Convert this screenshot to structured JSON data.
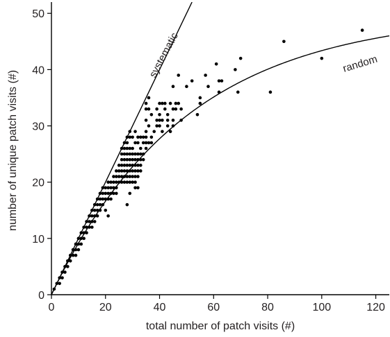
{
  "chart_data": {
    "type": "scatter",
    "xlabel": "total number of patch visits (#)",
    "ylabel": "number of unique patch visits (#)",
    "xlim": [
      0,
      125
    ],
    "ylim": [
      0,
      52
    ],
    "xticks": [
      0,
      20,
      40,
      60,
      80,
      100,
      120
    ],
    "yticks": [
      0,
      10,
      20,
      30,
      40,
      50
    ],
    "grid": false,
    "colors": {
      "points": "#000000",
      "lines": "#000000",
      "text": "#231f20"
    },
    "reference_curves": [
      {
        "name": "systematic",
        "kind": "identity"
      },
      {
        "name": "random",
        "kind": "saturating"
      }
    ],
    "points": [
      [
        1,
        1
      ],
      [
        2,
        2
      ],
      [
        3,
        3
      ],
      [
        3,
        2
      ],
      [
        4,
        4
      ],
      [
        4,
        3
      ],
      [
        5,
        5
      ],
      [
        5,
        4
      ],
      [
        6,
        6
      ],
      [
        6,
        5
      ],
      [
        7,
        7
      ],
      [
        7,
        6
      ],
      [
        8,
        8
      ],
      [
        8,
        7
      ],
      [
        9,
        9
      ],
      [
        9,
        8
      ],
      [
        9,
        7
      ],
      [
        10,
        10
      ],
      [
        10,
        9
      ],
      [
        10,
        8
      ],
      [
        11,
        11
      ],
      [
        11,
        10
      ],
      [
        11,
        9
      ],
      [
        12,
        12
      ],
      [
        12,
        11
      ],
      [
        12,
        10
      ],
      [
        13,
        13
      ],
      [
        13,
        12
      ],
      [
        13,
        11
      ],
      [
        14,
        14
      ],
      [
        14,
        13
      ],
      [
        14,
        12
      ],
      [
        15,
        15
      ],
      [
        15,
        14
      ],
      [
        15,
        13
      ],
      [
        15,
        12
      ],
      [
        16,
        16
      ],
      [
        16,
        15
      ],
      [
        16,
        14
      ],
      [
        16,
        13
      ],
      [
        17,
        17
      ],
      [
        17,
        16
      ],
      [
        17,
        15
      ],
      [
        17,
        14
      ],
      [
        18,
        18
      ],
      [
        18,
        17
      ],
      [
        18,
        16
      ],
      [
        18,
        15
      ],
      [
        19,
        19
      ],
      [
        19,
        18
      ],
      [
        19,
        17
      ],
      [
        19,
        16
      ],
      [
        20,
        19
      ],
      [
        20,
        18
      ],
      [
        20,
        17
      ],
      [
        20,
        15
      ],
      [
        21,
        20
      ],
      [
        21,
        19
      ],
      [
        21,
        18
      ],
      [
        21,
        17
      ],
      [
        21,
        14
      ],
      [
        22,
        20
      ],
      [
        22,
        19
      ],
      [
        22,
        18
      ],
      [
        22,
        17
      ],
      [
        23,
        21
      ],
      [
        23,
        20
      ],
      [
        23,
        19
      ],
      [
        23,
        18
      ],
      [
        24,
        22
      ],
      [
        24,
        21
      ],
      [
        24,
        20
      ],
      [
        24,
        19
      ],
      [
        24,
        18
      ],
      [
        25,
        23
      ],
      [
        25,
        22
      ],
      [
        25,
        21
      ],
      [
        25,
        20
      ],
      [
        26,
        26
      ],
      [
        26,
        25
      ],
      [
        26,
        24
      ],
      [
        26,
        23
      ],
      [
        26,
        22
      ],
      [
        26,
        21
      ],
      [
        26,
        20
      ],
      [
        27,
        27
      ],
      [
        27,
        26
      ],
      [
        27,
        25
      ],
      [
        27,
        24
      ],
      [
        27,
        23
      ],
      [
        27,
        22
      ],
      [
        27,
        21
      ],
      [
        27,
        20
      ],
      [
        28,
        28
      ],
      [
        28,
        27
      ],
      [
        28,
        26
      ],
      [
        28,
        25
      ],
      [
        28,
        24
      ],
      [
        28,
        23
      ],
      [
        28,
        22
      ],
      [
        28,
        21
      ],
      [
        28,
        20
      ],
      [
        28,
        16
      ],
      [
        29,
        29
      ],
      [
        29,
        28
      ],
      [
        29,
        26
      ],
      [
        29,
        25
      ],
      [
        29,
        24
      ],
      [
        29,
        23
      ],
      [
        29,
        22
      ],
      [
        29,
        21
      ],
      [
        29,
        20
      ],
      [
        29,
        18
      ],
      [
        30,
        28
      ],
      [
        30,
        26
      ],
      [
        30,
        25
      ],
      [
        30,
        24
      ],
      [
        30,
        23
      ],
      [
        30,
        22
      ],
      [
        30,
        21
      ],
      [
        30,
        20
      ],
      [
        31,
        29
      ],
      [
        31,
        27
      ],
      [
        31,
        25
      ],
      [
        31,
        24
      ],
      [
        31,
        23
      ],
      [
        31,
        22
      ],
      [
        31,
        21
      ],
      [
        31,
        20
      ],
      [
        31,
        19
      ],
      [
        32,
        28
      ],
      [
        32,
        27
      ],
      [
        32,
        25
      ],
      [
        32,
        24
      ],
      [
        32,
        23
      ],
      [
        32,
        22
      ],
      [
        32,
        21
      ],
      [
        32,
        19
      ],
      [
        33,
        28
      ],
      [
        33,
        26
      ],
      [
        33,
        25
      ],
      [
        33,
        24
      ],
      [
        33,
        23
      ],
      [
        33,
        22
      ],
      [
        34,
        28
      ],
      [
        34,
        27
      ],
      [
        34,
        25
      ],
      [
        34,
        24
      ],
      [
        35,
        34
      ],
      [
        35,
        33
      ],
      [
        35,
        31
      ],
      [
        35,
        29
      ],
      [
        35,
        28
      ],
      [
        35,
        27
      ],
      [
        35,
        26
      ],
      [
        36,
        35
      ],
      [
        36,
        33
      ],
      [
        36,
        30
      ],
      [
        36,
        27
      ],
      [
        37,
        32
      ],
      [
        37,
        28
      ],
      [
        37,
        27
      ],
      [
        38,
        29
      ],
      [
        39,
        33
      ],
      [
        39,
        31
      ],
      [
        39,
        30
      ],
      [
        40,
        34
      ],
      [
        40,
        32
      ],
      [
        40,
        31
      ],
      [
        40,
        30
      ],
      [
        41,
        34
      ],
      [
        41,
        31
      ],
      [
        41,
        29
      ],
      [
        42,
        34
      ],
      [
        42,
        33
      ],
      [
        43,
        32
      ],
      [
        43,
        31
      ],
      [
        43,
        30
      ],
      [
        44,
        34
      ],
      [
        44,
        29
      ],
      [
        45,
        33
      ],
      [
        45,
        31
      ],
      [
        45,
        30
      ],
      [
        45,
        37
      ],
      [
        46,
        34
      ],
      [
        46,
        33
      ],
      [
        47,
        39
      ],
      [
        47,
        34
      ],
      [
        48,
        33
      ],
      [
        48,
        31
      ],
      [
        50,
        37
      ],
      [
        52,
        38
      ],
      [
        54,
        32
      ],
      [
        55,
        35
      ],
      [
        55,
        34
      ],
      [
        57,
        39
      ],
      [
        58,
        37
      ],
      [
        61,
        41
      ],
      [
        62,
        38
      ],
      [
        62,
        36
      ],
      [
        63,
        38
      ],
      [
        68,
        40
      ],
      [
        69,
        36
      ],
      [
        70,
        42
      ],
      [
        81,
        36
      ],
      [
        86,
        45
      ],
      [
        100,
        42
      ],
      [
        115,
        47
      ]
    ]
  }
}
